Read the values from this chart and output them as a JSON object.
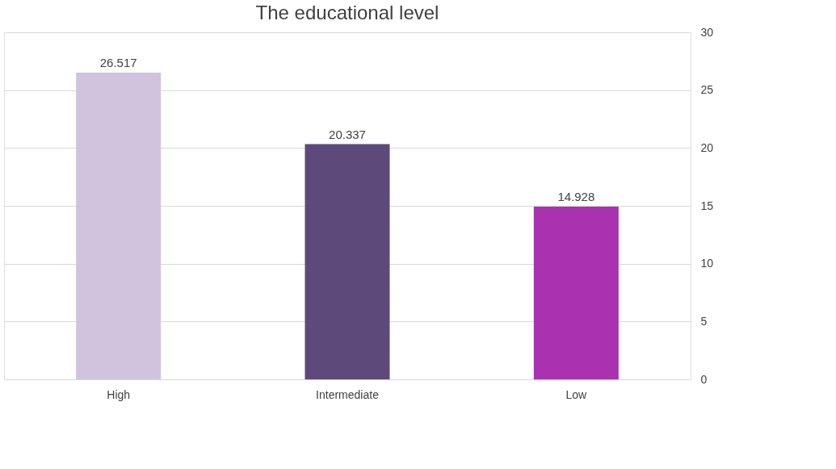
{
  "chart_data": {
    "type": "bar",
    "title": "The educational level",
    "categories": [
      "High",
      "Intermediate",
      "Low"
    ],
    "values": [
      26.517,
      20.337,
      14.928
    ],
    "colors": [
      "#cfc3dd",
      "#5e4a7a",
      "#a832b0"
    ],
    "ylim": [
      0,
      30
    ],
    "yticks": [
      0,
      5,
      10,
      15,
      20,
      25,
      30
    ],
    "grid": true,
    "data_labels": true
  }
}
